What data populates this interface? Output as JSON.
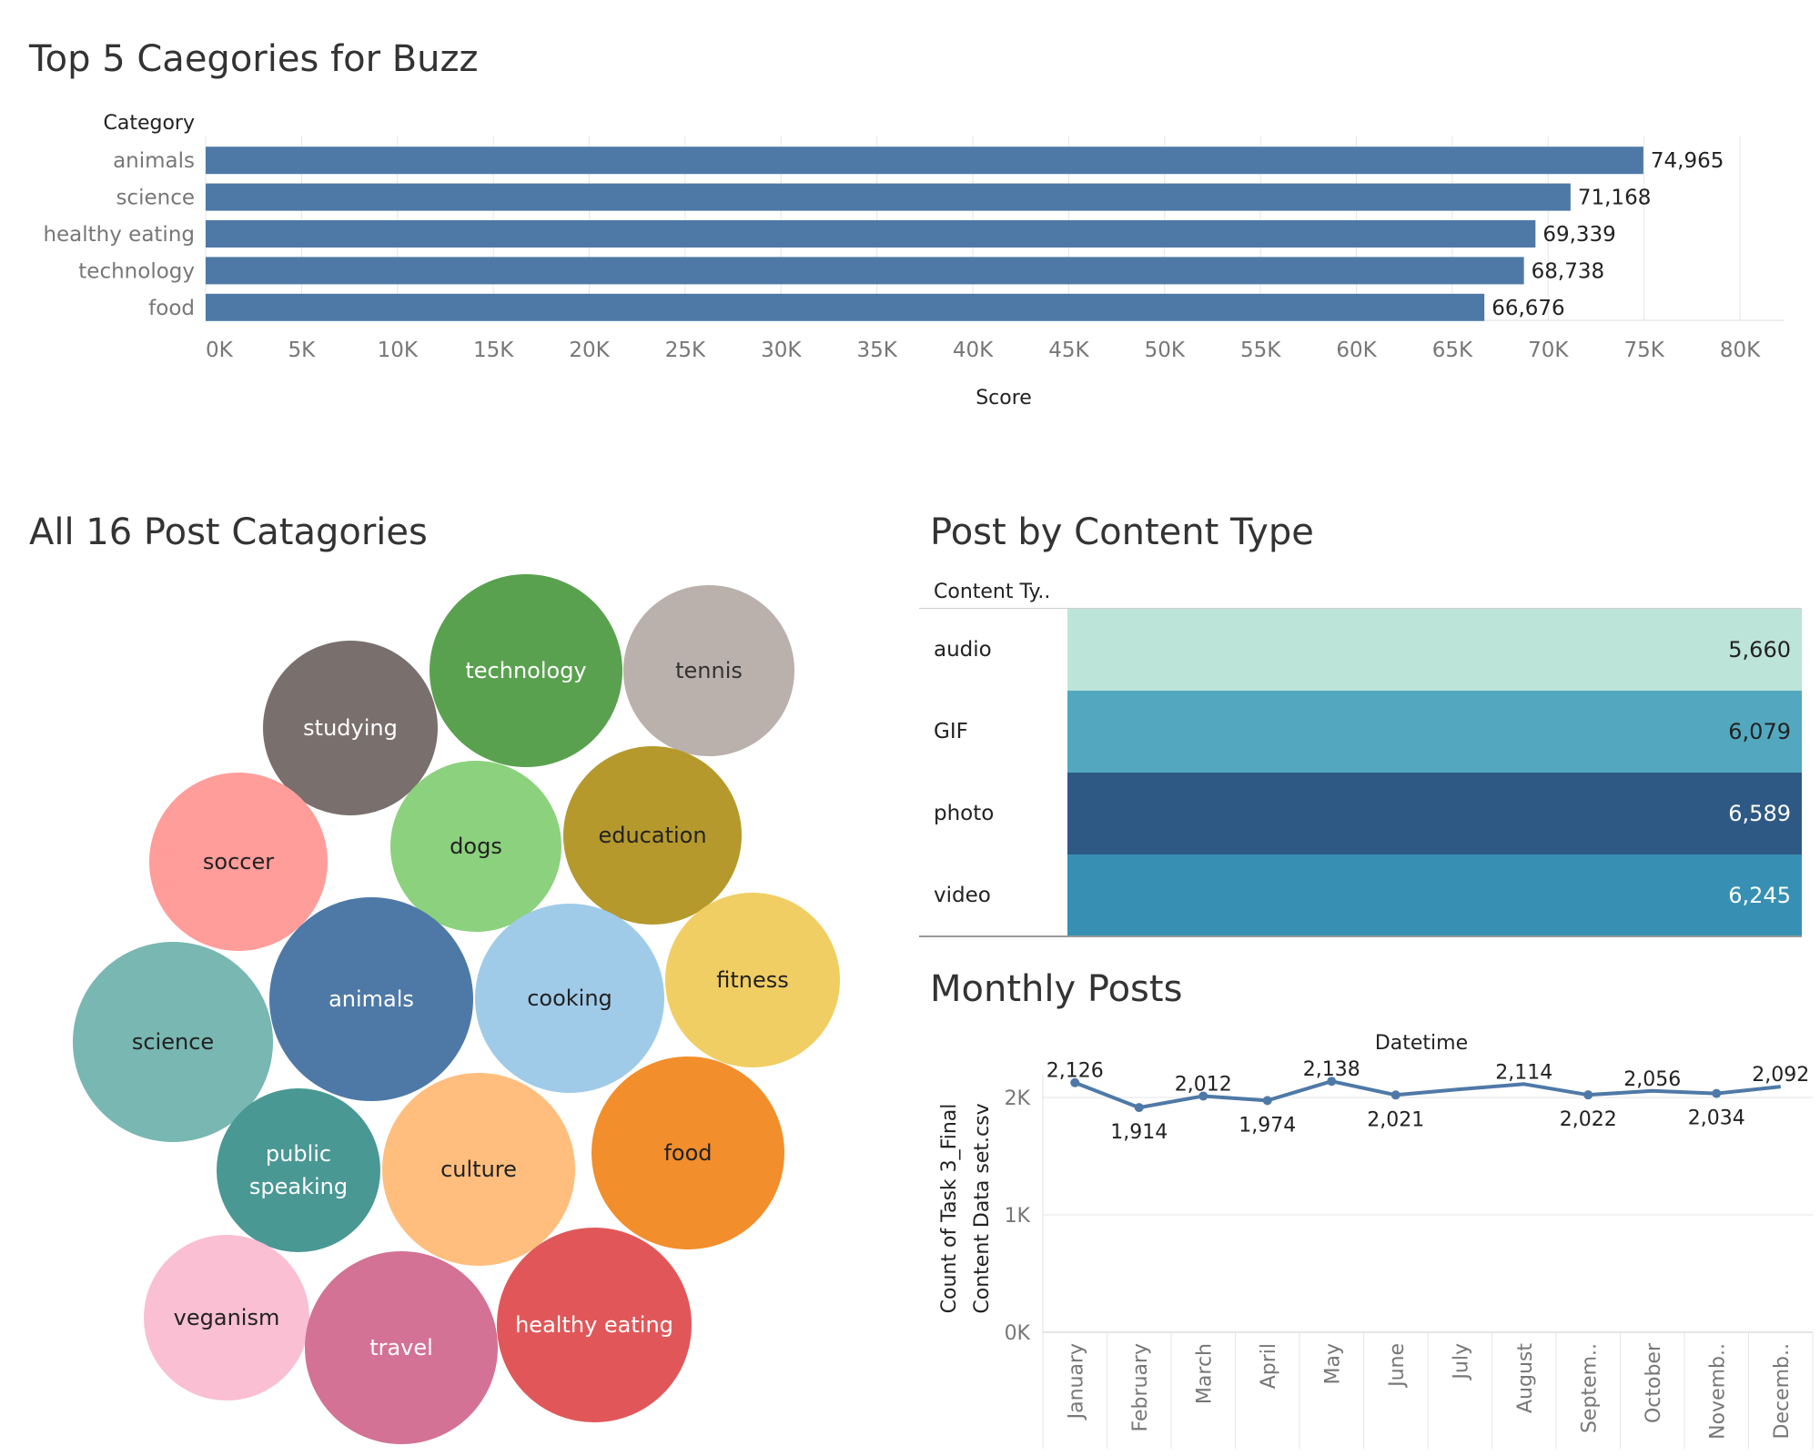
{
  "titles": {
    "top5": "Top 5 Caegories for Buzz",
    "bubbles": "All 16 Post Catagories",
    "content_type": "Post by Content Type",
    "monthly": "Monthly Posts"
  },
  "colors": {
    "bar": "#4e79a7",
    "grid": "#e6e6e6"
  },
  "chart_data": [
    {
      "type": "bar",
      "orientation": "horizontal",
      "title": "Top 5 Caegories for Buzz",
      "ylabel": "Category",
      "xlabel": "Score",
      "categories": [
        "animals",
        "science",
        "healthy eating",
        "technology",
        "food"
      ],
      "values": [
        74965,
        71168,
        69339,
        68738,
        66676
      ],
      "value_labels": [
        "74,965",
        "71,168",
        "69,339",
        "68,738",
        "66,676"
      ],
      "xlim": [
        0,
        80000
      ],
      "xticks": [
        0,
        5000,
        10000,
        15000,
        20000,
        25000,
        30000,
        35000,
        40000,
        45000,
        50000,
        55000,
        60000,
        65000,
        70000,
        75000,
        80000
      ],
      "xtick_labels": [
        "0K",
        "5K",
        "10K",
        "15K",
        "20K",
        "25K",
        "30K",
        "35K",
        "40K",
        "45K",
        "50K",
        "55K",
        "60K",
        "65K",
        "70K",
        "75K",
        "80K"
      ],
      "grid": true
    },
    {
      "type": "bubble",
      "title": "All 16 Post Catagories",
      "items": [
        {
          "label": "technology",
          "color": "#59a14f",
          "text_color": "#ffffff"
        },
        {
          "label": "tennis",
          "color": "#bab0ac",
          "text_color": "#333333"
        },
        {
          "label": "studying",
          "color": "#79706e",
          "text_color": "#ffffff"
        },
        {
          "label": "soccer",
          "color": "#ff9d9a",
          "text_color": "#222222"
        },
        {
          "label": "dogs",
          "color": "#8cd17d",
          "text_color": "#222222"
        },
        {
          "label": "education",
          "color": "#b6992d",
          "text_color": "#222222"
        },
        {
          "label": "fitness",
          "color": "#f1ce63",
          "text_color": "#222222"
        },
        {
          "label": "science",
          "color": "#79b7b2",
          "text_color": "#222222"
        },
        {
          "label": "animals",
          "color": "#4e79a7",
          "text_color": "#ffffff"
        },
        {
          "label": "cooking",
          "color": "#a0cbe8",
          "text_color": "#222222"
        },
        {
          "label": "public speaking",
          "lines": [
            "public",
            "speaking"
          ],
          "color": "#499894",
          "text_color": "#ffffff"
        },
        {
          "label": "culture",
          "color": "#ffbe7d",
          "text_color": "#222222"
        },
        {
          "label": "food",
          "color": "#f28e2b",
          "text_color": "#222222"
        },
        {
          "label": "veganism",
          "color": "#fabfd2",
          "text_color": "#222222"
        },
        {
          "label": "travel",
          "color": "#d37295",
          "text_color": "#ffffff"
        },
        {
          "label": "healthy eating",
          "color": "#e15759",
          "text_color": "#ffffff"
        }
      ]
    },
    {
      "type": "table",
      "title": "Post by Content Type",
      "header": "Content Ty..",
      "rows": [
        {
          "label": "audio",
          "value": 5660,
          "display": "5,660",
          "color": "#bde4d9",
          "text_color": "#222222"
        },
        {
          "label": "GIF",
          "value": 6079,
          "display": "6,079",
          "color": "#53a8bf",
          "text_color": "#222222"
        },
        {
          "label": "photo",
          "value": 6589,
          "display": "6,589",
          "color": "#2e5985",
          "text_color": "#ffffff"
        },
        {
          "label": "video",
          "value": 6245,
          "display": "6,245",
          "color": "#3790b3",
          "text_color": "#ffffff"
        }
      ]
    },
    {
      "type": "line",
      "title": "Monthly Posts",
      "xlabel": "Datetime",
      "ylabel_lines": [
        "Count of Task 3_Final",
        "Content Data set.csv"
      ],
      "categories": [
        "January",
        "February",
        "March",
        "April",
        "May",
        "June",
        "July",
        "August",
        "Septem..",
        "October",
        "Novemb..",
        "Decemb.."
      ],
      "values": [
        2126,
        1914,
        2012,
        1974,
        2138,
        2021,
        2070,
        2114,
        2022,
        2056,
        2034,
        2092
      ],
      "value_labels": [
        "2,126",
        "1,914",
        "2,012",
        "1,974",
        "2,138",
        "2,021",
        "",
        "2,114",
        "2,022",
        "2,056",
        "2,034",
        "2,092"
      ],
      "label_positions": [
        "above",
        "below",
        "above",
        "below",
        "above",
        "below",
        "none",
        "above",
        "below",
        "above",
        "below",
        "above"
      ],
      "markers": [
        true,
        true,
        true,
        true,
        true,
        true,
        false,
        false,
        true,
        false,
        true,
        false
      ],
      "ylim": [
        0,
        2200
      ],
      "yticks": [
        0,
        1000,
        2000
      ],
      "ytick_labels": [
        "0K",
        "1K",
        "2K"
      ],
      "grid": true
    }
  ]
}
